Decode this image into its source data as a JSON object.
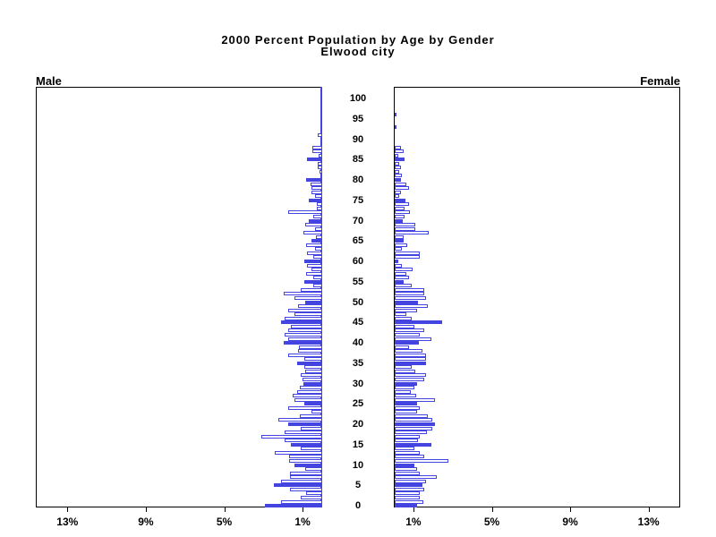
{
  "title": {
    "line1": "2000 Percent Population by Age by Gender",
    "line2": "Elwood city"
  },
  "panels": {
    "left_label": "Male",
    "right_label": "Female"
  },
  "axis": {
    "left_tick_labels": [
      "13%",
      "9%",
      "5%",
      "1%"
    ],
    "left_tick_values": [
      13,
      9,
      5,
      1
    ],
    "right_tick_labels": [
      "1%",
      "5%",
      "9%",
      "13%"
    ],
    "right_tick_values": [
      1,
      5,
      9,
      13
    ],
    "percent_max": 14.6
  },
  "colors": {
    "bar_blue": "#4444E0",
    "bar_outline_fill": "#FFFFFF",
    "axis_black": "#000000"
  },
  "chart_data": {
    "type": "bar",
    "subtype": "population_pyramid",
    "title": "2000 Percent Population by Age by Gender",
    "subtitle": "Elwood city",
    "units": "percent of population",
    "age_min": 0,
    "age_max": 100,
    "age_tick_step": 5,
    "age_tick_labels": [
      "0",
      "5",
      "10",
      "15",
      "20",
      "25",
      "30",
      "35",
      "40",
      "45",
      "50",
      "55",
      "60",
      "65",
      "70",
      "75",
      "80",
      "85",
      "90",
      "95",
      "100"
    ],
    "highlight_every": 5,
    "xlim_each_side": [
      0,
      14.6
    ],
    "series": [
      {
        "name": "Male",
        "direction": "left",
        "values_by_age": [
          2.9,
          2.1,
          1.1,
          0.8,
          1.65,
          2.45,
          2.1,
          1.65,
          1.65,
          0.85,
          1.4,
          1.7,
          1.7,
          2.4,
          1.1,
          1.6,
          1.9,
          3.1,
          1.9,
          1.1,
          1.75,
          2.25,
          1.15,
          0.55,
          1.75,
          0.9,
          1.4,
          1.5,
          1.3,
          1.15,
          0.95,
          1.0,
          1.1,
          0.88,
          0.92,
          1.3,
          0.92,
          1.75,
          1.24,
          1.2,
          1.95,
          1.75,
          1.93,
          1.75,
          1.6,
          2.1,
          1.93,
          1.42,
          1.75,
          1.24,
          0.88,
          1.42,
          1.95,
          1.1,
          0.46,
          0.9,
          0.46,
          0.83,
          0.55,
          0.78,
          0.92,
          0.46,
          0.78,
          0.37,
          0.83,
          0.55,
          0.3,
          0.97,
          0.37,
          0.88,
          0.7,
          0.46,
          1.75,
          0.28,
          0.28,
          0.7,
          0.37,
          0.55,
          0.55,
          0.6,
          0.84,
          0.1,
          0.14,
          0.23,
          0.23,
          0.77,
          0.2,
          0.5,
          0.5,
          0,
          0,
          0.23,
          0,
          0,
          0,
          0,
          0,
          0,
          0,
          0,
          0
        ]
      },
      {
        "name": "Female",
        "direction": "right",
        "values_by_age": [
          1.15,
          1.45,
          1.3,
          1.26,
          1.5,
          1.43,
          1.6,
          2.15,
          1.26,
          1.12,
          1.0,
          2.75,
          1.5,
          1.26,
          1.0,
          1.85,
          1.2,
          1.3,
          1.66,
          1.93,
          2.05,
          1.93,
          1.7,
          1.12,
          1.26,
          1.15,
          2.05,
          1.08,
          0.81,
          1.0,
          1.15,
          1.5,
          1.6,
          1.03,
          0.85,
          1.6,
          1.6,
          1.6,
          1.4,
          0.72,
          1.23,
          1.85,
          1.3,
          1.5,
          1.0,
          2.4,
          0.85,
          0.6,
          1.15,
          1.7,
          1.2,
          1.6,
          1.5,
          1.5,
          0.88,
          0.45,
          0.72,
          0.6,
          0.92,
          0.35,
          0.2,
          1.3,
          1.3,
          0.35,
          0.65,
          0.46,
          0.46,
          1.72,
          1.03,
          1.03,
          0.4,
          0.5,
          0.77,
          0.5,
          0.72,
          0.55,
          0.23,
          0.31,
          0.72,
          0.6,
          0.3,
          0.37,
          0.23,
          0.3,
          0.23,
          0.5,
          0.2,
          0.45,
          0.31,
          0,
          0,
          0,
          0,
          0.1,
          0,
          0,
          0.1,
          0,
          0,
          0,
          0
        ]
      }
    ]
  }
}
